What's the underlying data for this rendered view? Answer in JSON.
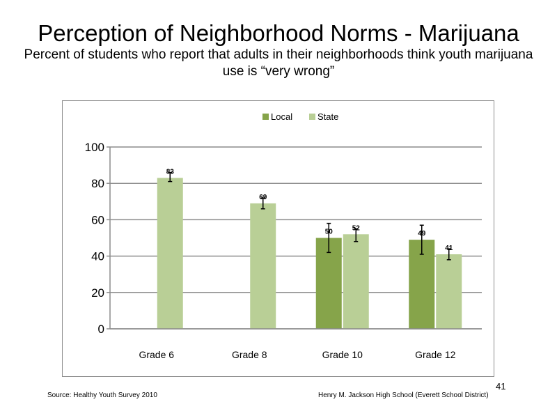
{
  "slide": {
    "title": "Perception  of Neighborhood  Norms - Marijuana",
    "subtitle": "Percent of students  who report that adults in their neighborhoods think youth marijuana  use is “very wrong”",
    "source": "Source: Healthy  Youth Survey 2010",
    "school": "Henry M.  Jackson High School (Everett School District)",
    "page_number": "41"
  },
  "colors": {
    "local": "#86a44a",
    "state": "#b9cf96",
    "gridline": "#8c8c8c",
    "error_bar": "#000000"
  },
  "chart_data": {
    "type": "bar",
    "categories": [
      "Grade 6",
      "Grade 8",
      "Grade 10",
      "Grade 12"
    ],
    "series": [
      {
        "name": "Local",
        "values": [
          null,
          null,
          50,
          49
        ],
        "labels": [
          "",
          "",
          "50",
          "49"
        ],
        "error_low": [
          null,
          null,
          42,
          41
        ],
        "error_high": [
          null,
          null,
          58,
          57
        ]
      },
      {
        "name": "State",
        "values": [
          83,
          69,
          52,
          41
        ],
        "labels": [
          "83",
          "69",
          "52",
          "41"
        ],
        "error_low": [
          81,
          66,
          48,
          38
        ],
        "error_high": [
          86,
          72,
          55,
          44
        ]
      }
    ],
    "yticks": [
      "0",
      "20",
      "40",
      "60",
      "80",
      "100"
    ],
    "ylim": [
      0,
      100
    ],
    "grid": true,
    "legend_position": "top-center"
  }
}
